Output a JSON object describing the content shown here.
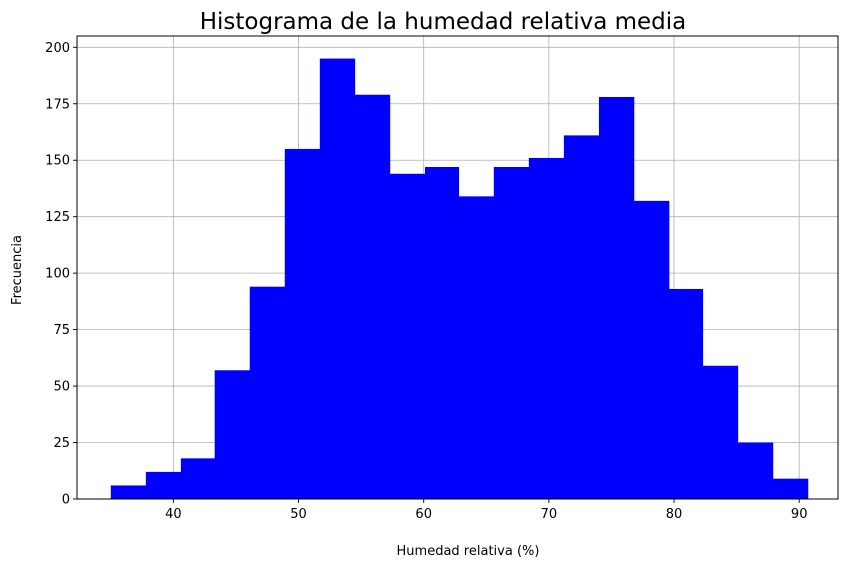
{
  "chart_data": {
    "type": "bar",
    "title": "Histograma de la humedad relativa media",
    "xlabel": "Humedad relativa (%)",
    "ylabel": "Frecuencia",
    "xlim": [
      32.3,
      93.1
    ],
    "ylim": [
      0,
      205
    ],
    "grid": true,
    "bar_color": "#0000ff",
    "bin_edges": [
      35.0,
      37.8,
      40.6,
      43.3,
      46.1,
      48.9,
      51.7,
      54.5,
      57.3,
      60.1,
      62.8,
      65.6,
      68.4,
      71.2,
      74.0,
      76.8,
      79.6,
      82.3,
      85.1,
      87.9,
      90.7
    ],
    "values": [
      6,
      12,
      18,
      57,
      94,
      155,
      195,
      179,
      144,
      147,
      134,
      147,
      151,
      161,
      178,
      132,
      93,
      59,
      25,
      9
    ],
    "x_ticks": [
      40,
      50,
      60,
      70,
      80,
      90
    ],
    "x_tick_labels": [
      "40",
      "50",
      "60",
      "70",
      "80",
      "90"
    ],
    "y_ticks": [
      0,
      25,
      50,
      75,
      100,
      125,
      150,
      175,
      200
    ],
    "y_tick_labels": [
      "0",
      "25",
      "50",
      "75",
      "100",
      "125",
      "150",
      "175",
      "200"
    ]
  }
}
